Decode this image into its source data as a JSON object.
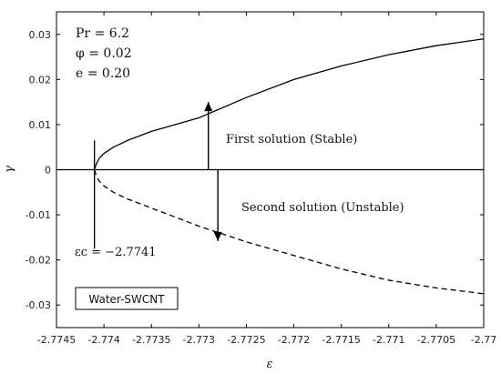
{
  "chart_data": {
    "type": "line",
    "xlabel": "ε",
    "ylabel": "γ",
    "xlim": [
      -2.7745,
      -2.77
    ],
    "ylim": [
      -0.035,
      0.035
    ],
    "x_ticks": [
      -2.7745,
      -2.774,
      -2.7735,
      -2.773,
      -2.7725,
      -2.772,
      -2.7715,
      -2.771,
      -2.7705,
      -2.77
    ],
    "x_tick_labels": [
      "-2.7745",
      "-2.774",
      "-2.7735",
      "-2.773",
      "-2.7725",
      "-2.772",
      "-2.7715",
      "-2.771",
      "-2.7705",
      "-2.77"
    ],
    "y_ticks": [
      0.03,
      0.02,
      0.01,
      0,
      -0.01,
      -0.02,
      -0.03
    ],
    "y_tick_labels": [
      "0.03",
      "0.02",
      "0.01",
      "0",
      "-0.01",
      "-0.02",
      "-0.03"
    ],
    "grid": false,
    "series": [
      {
        "style": "solid",
        "x": [
          -2.7741,
          -2.77408,
          -2.77405,
          -2.774,
          -2.7739,
          -2.77375,
          -2.7735,
          -2.773,
          -2.7725,
          -2.772,
          -2.7715,
          -2.771,
          -2.7705,
          -2.77
        ],
        "y": [
          0.0,
          0.0013,
          0.0025,
          0.0036,
          0.005,
          0.0065,
          0.0085,
          0.0115,
          0.016,
          0.02,
          0.023,
          0.0255,
          0.0275,
          0.029
        ]
      },
      {
        "style": "dashed",
        "x": [
          -2.7741,
          -2.77408,
          -2.77405,
          -2.774,
          -2.7739,
          -2.77375,
          -2.7735,
          -2.773,
          -2.7725,
          -2.772,
          -2.7715,
          -2.771,
          -2.7705,
          -2.77
        ],
        "y": [
          0.0,
          -0.0013,
          -0.0025,
          -0.0036,
          -0.005,
          -0.0065,
          -0.0085,
          -0.0125,
          -0.016,
          -0.019,
          -0.022,
          -0.0245,
          -0.0262,
          -0.0275
        ]
      },
      {
        "style": "solid",
        "x": [
          -2.7745,
          -2.77
        ],
        "y": [
          0,
          0
        ]
      }
    ],
    "critical_marker": {
      "x": -2.7741,
      "y_top": 0.0065,
      "y_bottom": -0.0175
    },
    "arrows": [
      {
        "x": -2.7729,
        "from_y": 0.0,
        "to_y": 0.015
      },
      {
        "x": -2.7728,
        "from_y": 0.0,
        "to_y": -0.0158
      }
    ],
    "params": [
      "Pr = 6.2",
      "φ = 0.02",
      "e = 0.20"
    ],
    "annotations": {
      "first": "First solution (Stable)",
      "second": "Second solution (Unstable)",
      "critical": "εc = −2.7741"
    },
    "legend_box": "Water-SWCNT"
  }
}
